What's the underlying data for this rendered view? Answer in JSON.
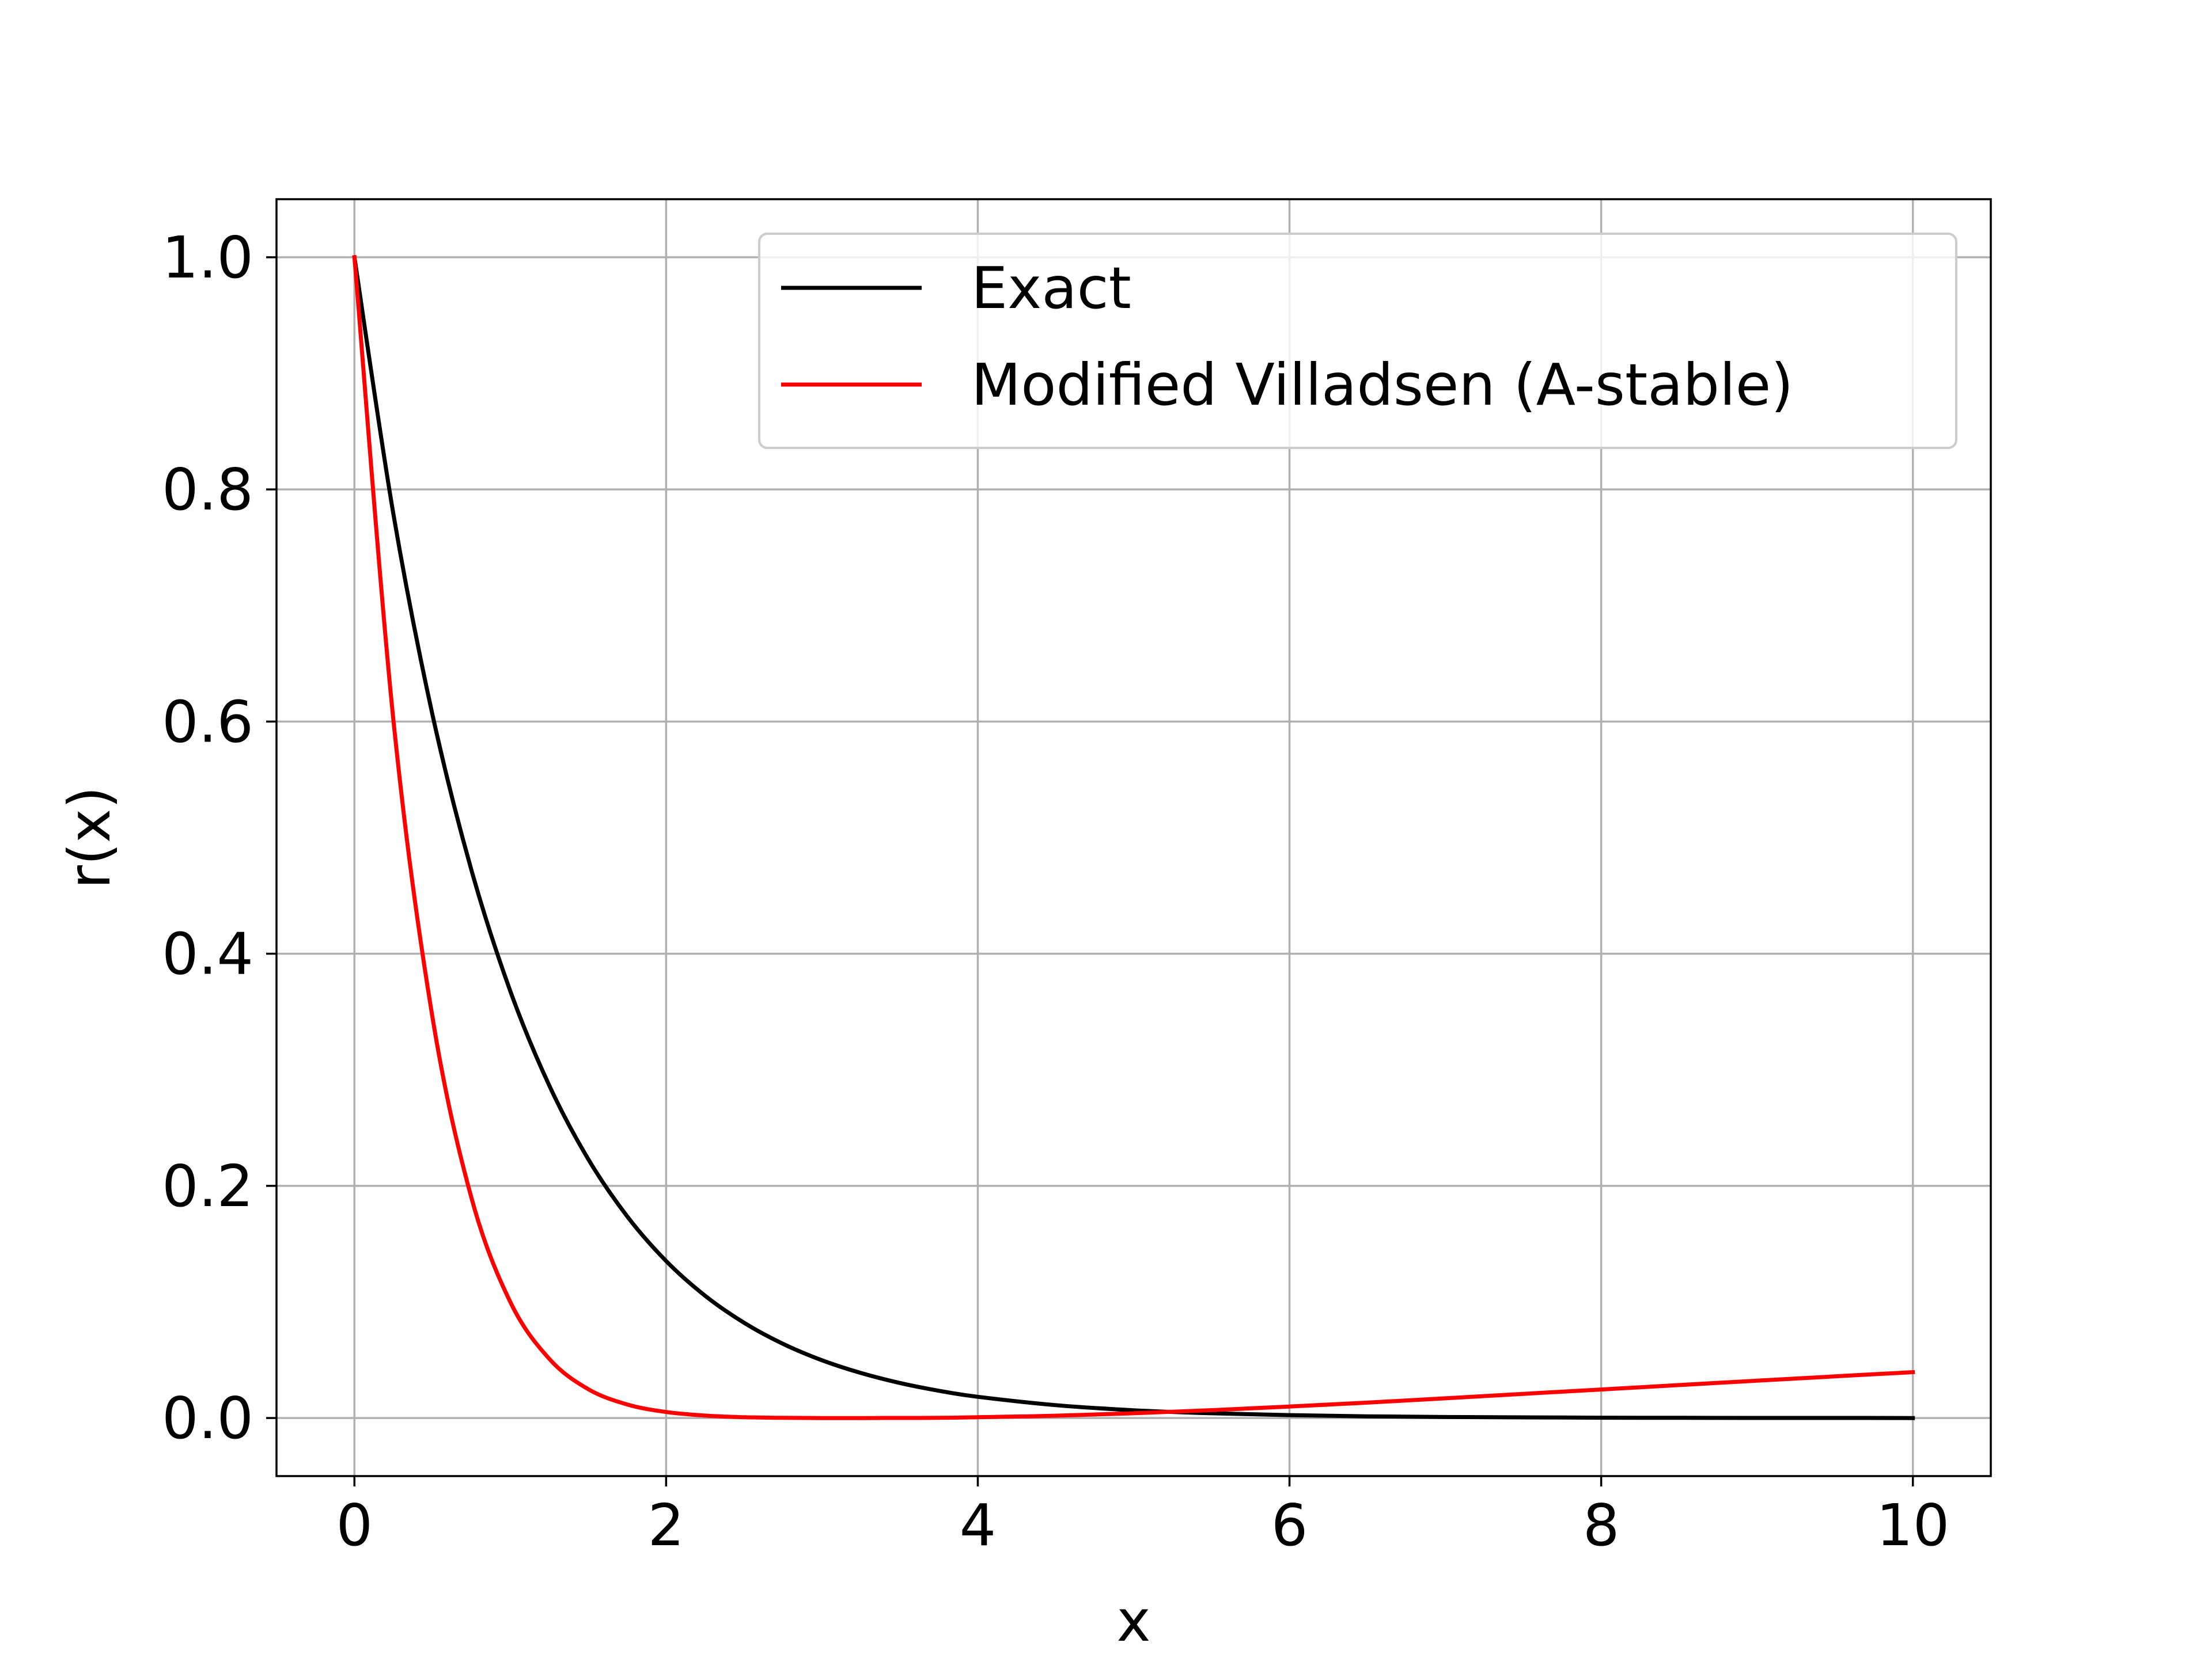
{
  "chart_data": {
    "type": "line",
    "title": "",
    "xlabel": "x",
    "ylabel": "r(x)",
    "xlim": [
      -0.5,
      10.5
    ],
    "ylim": [
      -0.05,
      1.05
    ],
    "xticks": [
      0,
      2,
      4,
      6,
      8,
      10
    ],
    "xtick_labels": [
      "0",
      "2",
      "4",
      "6",
      "8",
      "10"
    ],
    "yticks": [
      0.0,
      0.2,
      0.4,
      0.6,
      0.8,
      1.0
    ],
    "ytick_labels": [
      "0.0",
      "0.2",
      "0.4",
      "0.6",
      "0.8",
      "1.0"
    ],
    "grid": true,
    "legend_position": "top-right",
    "series": [
      {
        "name": "Exact",
        "color": "#000000",
        "x": [
          0,
          0.25,
          0.5,
          0.75,
          1,
          1.25,
          1.5,
          1.75,
          2,
          2.25,
          2.5,
          2.75,
          3,
          3.25,
          3.5,
          3.75,
          4,
          4.5,
          5,
          5.5,
          6,
          6.5,
          7,
          7.5,
          8,
          8.5,
          9,
          9.5,
          10
        ],
        "y": [
          1.0,
          0.7788,
          0.6065,
          0.4724,
          0.3679,
          0.2865,
          0.2231,
          0.1738,
          0.1353,
          0.1054,
          0.0821,
          0.0639,
          0.0498,
          0.0388,
          0.0302,
          0.0235,
          0.0183,
          0.0111,
          0.0067,
          0.0041,
          0.0025,
          0.0015,
          0.0009,
          0.0006,
          0.0003,
          0.0002,
          0.0001,
          0.0001,
          0.0
        ]
      },
      {
        "name": "Modified Villadsen (A-stable)",
        "color": "#ff0000",
        "x": [
          0,
          0.25,
          0.5,
          0.75,
          1,
          1.25,
          1.5,
          1.75,
          2,
          2.25,
          2.5,
          2.75,
          3,
          3.25,
          3.5,
          3.75,
          4,
          4.5,
          5,
          5.5,
          6,
          6.5,
          7,
          7.5,
          8,
          8.5,
          9,
          9.5,
          10
        ],
        "y": [
          1.0,
          0.6014,
          0.346,
          0.1901,
          0.1,
          0.051,
          0.0249,
          0.0117,
          0.0052,
          0.0021,
          0.0007,
          0.0002,
          0.0,
          0.0,
          0.0001,
          0.0002,
          0.0007,
          0.002,
          0.0041,
          0.0068,
          0.0099,
          0.0133,
          0.017,
          0.0208,
          0.0246,
          0.0284,
          0.0322,
          0.0359,
          0.0395
        ]
      }
    ]
  }
}
